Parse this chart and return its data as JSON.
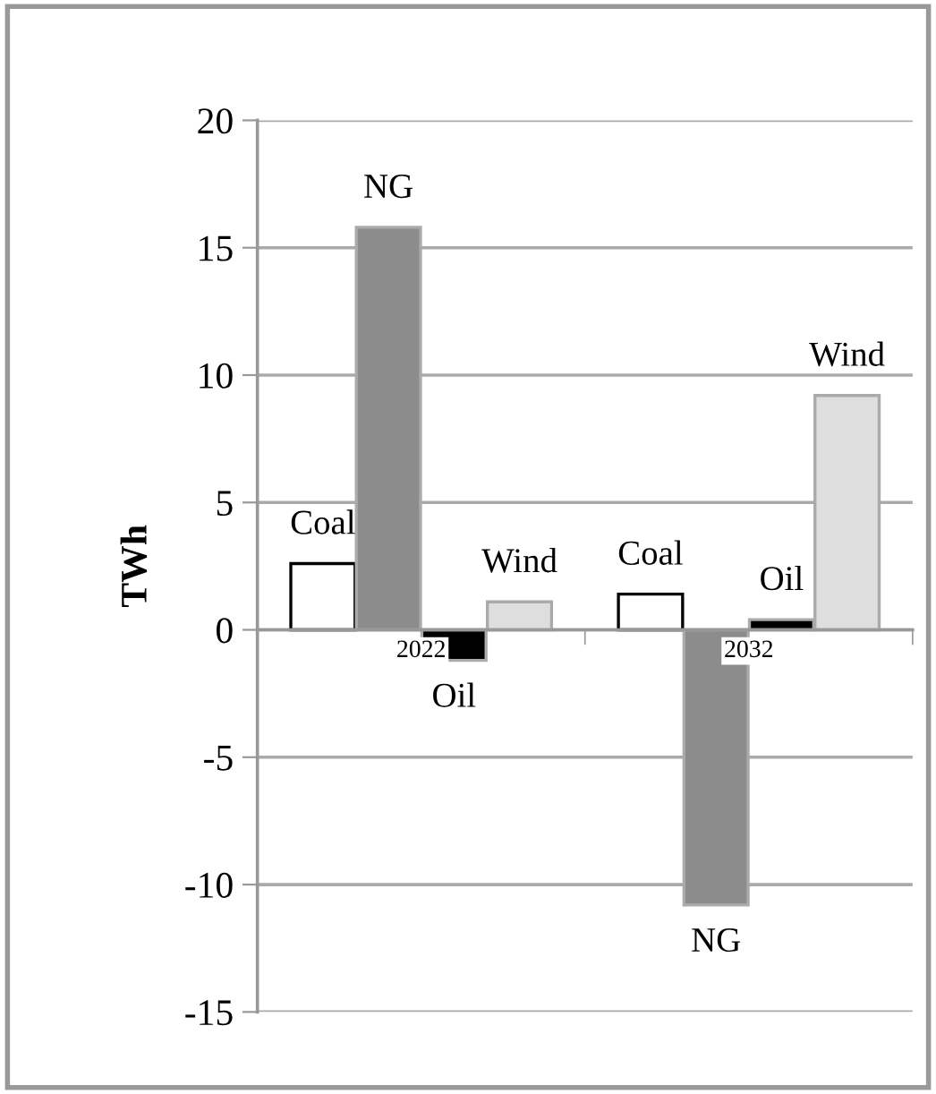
{
  "chart_data": {
    "type": "bar",
    "ylabel": "TWh",
    "categories": [
      "2022",
      "2032"
    ],
    "series": [
      {
        "name": "Coal",
        "color": "#ffffff",
        "values": [
          2.6,
          1.4
        ]
      },
      {
        "name": "NG",
        "color": "#8c8c8c",
        "values": [
          15.8,
          -10.8
        ]
      },
      {
        "name": "Oil",
        "color": "#000000",
        "values": [
          -1.2,
          0.4
        ]
      },
      {
        "name": "Wind",
        "color": "#dedede",
        "values": [
          1.1,
          9.2
        ]
      }
    ],
    "ylim": [
      -15,
      20
    ],
    "yticks": [
      -15,
      -10,
      -5,
      0,
      5,
      10,
      15,
      20
    ],
    "grid": "y",
    "legend": false
  }
}
